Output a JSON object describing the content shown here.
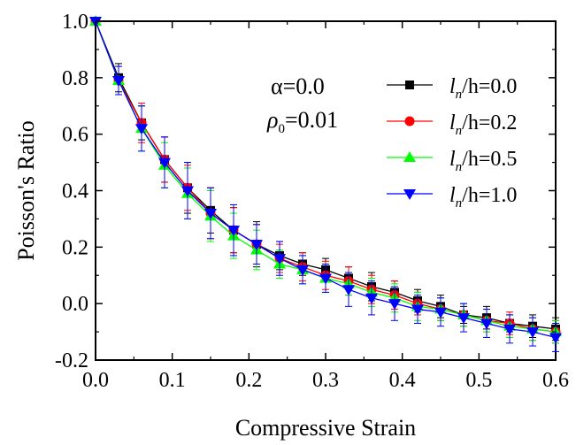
{
  "chart_data": {
    "type": "line",
    "xlabel": "Compressive Strain",
    "ylabel": "Poisson's Ratio",
    "xlim": [
      0.0,
      0.6
    ],
    "ylim": [
      -0.2,
      1.0
    ],
    "x_ticks": [
      "0.0",
      "0.1",
      "0.2",
      "0.3",
      "0.4",
      "0.5",
      "0.6"
    ],
    "y_ticks": [
      "-0.2",
      "0.0",
      "0.2",
      "0.4",
      "0.6",
      "0.8",
      "1.0"
    ],
    "grid": false,
    "legend_position": "top-right",
    "annotations": {
      "alpha": "α=0.0",
      "rho_symbol": "ρ",
      "rho_sub": "0",
      "rho_value": "=0.01"
    },
    "x": [
      0.0,
      0.03,
      0.06,
      0.09,
      0.12,
      0.15,
      0.18,
      0.21,
      0.24,
      0.27,
      0.3,
      0.33,
      0.36,
      0.39,
      0.42,
      0.45,
      0.48,
      0.51,
      0.54,
      0.57,
      0.6
    ],
    "series": [
      {
        "legend_italic_l": "l",
        "legend_sub": "n",
        "legend_rest": "/h=0.0",
        "color": "#000000",
        "marker": "square",
        "values": [
          1.0,
          0.8,
          0.64,
          0.51,
          0.41,
          0.33,
          0.26,
          0.21,
          0.17,
          0.14,
          0.12,
          0.09,
          0.06,
          0.04,
          0.01,
          -0.01,
          -0.04,
          -0.05,
          -0.07,
          -0.08,
          -0.09
        ],
        "error": [
          0,
          0.05,
          0.06,
          0.08,
          0.09,
          0.08,
          0.08,
          0.08,
          0.05,
          0.04,
          0.04,
          0.04,
          0.05,
          0.04,
          0.04,
          0.04,
          0.03,
          0.04,
          0.03,
          0.04,
          0.04
        ]
      },
      {
        "legend_italic_l": "l",
        "legend_sub": "n",
        "legend_rest": "/h=0.2",
        "color": "#ff0000",
        "marker": "circle",
        "values": [
          1.0,
          0.79,
          0.64,
          0.51,
          0.41,
          0.32,
          0.26,
          0.21,
          0.16,
          0.13,
          0.1,
          0.08,
          0.05,
          0.03,
          0.0,
          -0.02,
          -0.04,
          -0.06,
          -0.07,
          -0.09,
          -0.1
        ],
        "error": [
          0,
          0.05,
          0.07,
          0.08,
          0.08,
          0.09,
          0.08,
          0.07,
          0.05,
          0.05,
          0.05,
          0.05,
          0.05,
          0.05,
          0.04,
          0.04,
          0.04,
          0.04,
          0.04,
          0.04,
          0.04
        ]
      },
      {
        "legend_italic_l": "l",
        "legend_sub": "n",
        "legend_rest": "/h=0.5",
        "color": "#00ff00",
        "marker": "triangle-up",
        "values": [
          1.0,
          0.79,
          0.62,
          0.49,
          0.39,
          0.31,
          0.24,
          0.19,
          0.14,
          0.12,
          0.09,
          0.07,
          0.04,
          0.02,
          -0.01,
          -0.02,
          -0.04,
          -0.06,
          -0.08,
          -0.09,
          -0.1
        ],
        "error": [
          0,
          0.05,
          0.08,
          0.08,
          0.09,
          0.09,
          0.08,
          0.07,
          0.05,
          0.05,
          0.05,
          0.04,
          0.05,
          0.05,
          0.05,
          0.04,
          0.04,
          0.04,
          0.04,
          0.04,
          0.04
        ]
      },
      {
        "legend_italic_l": "l",
        "legend_sub": "n",
        "legend_rest": "/h=1.0",
        "color": "#0000ff",
        "marker": "triangle-down",
        "values": [
          1.0,
          0.79,
          0.62,
          0.5,
          0.4,
          0.32,
          0.26,
          0.21,
          0.16,
          0.12,
          0.09,
          0.05,
          0.02,
          0.0,
          -0.02,
          -0.03,
          -0.05,
          -0.07,
          -0.09,
          -0.1,
          -0.12
        ],
        "error": [
          0,
          0.05,
          0.08,
          0.09,
          0.1,
          0.09,
          0.09,
          0.07,
          0.06,
          0.05,
          0.05,
          0.06,
          0.06,
          0.06,
          0.05,
          0.05,
          0.05,
          0.05,
          0.05,
          0.05,
          0.05
        ]
      }
    ]
  }
}
